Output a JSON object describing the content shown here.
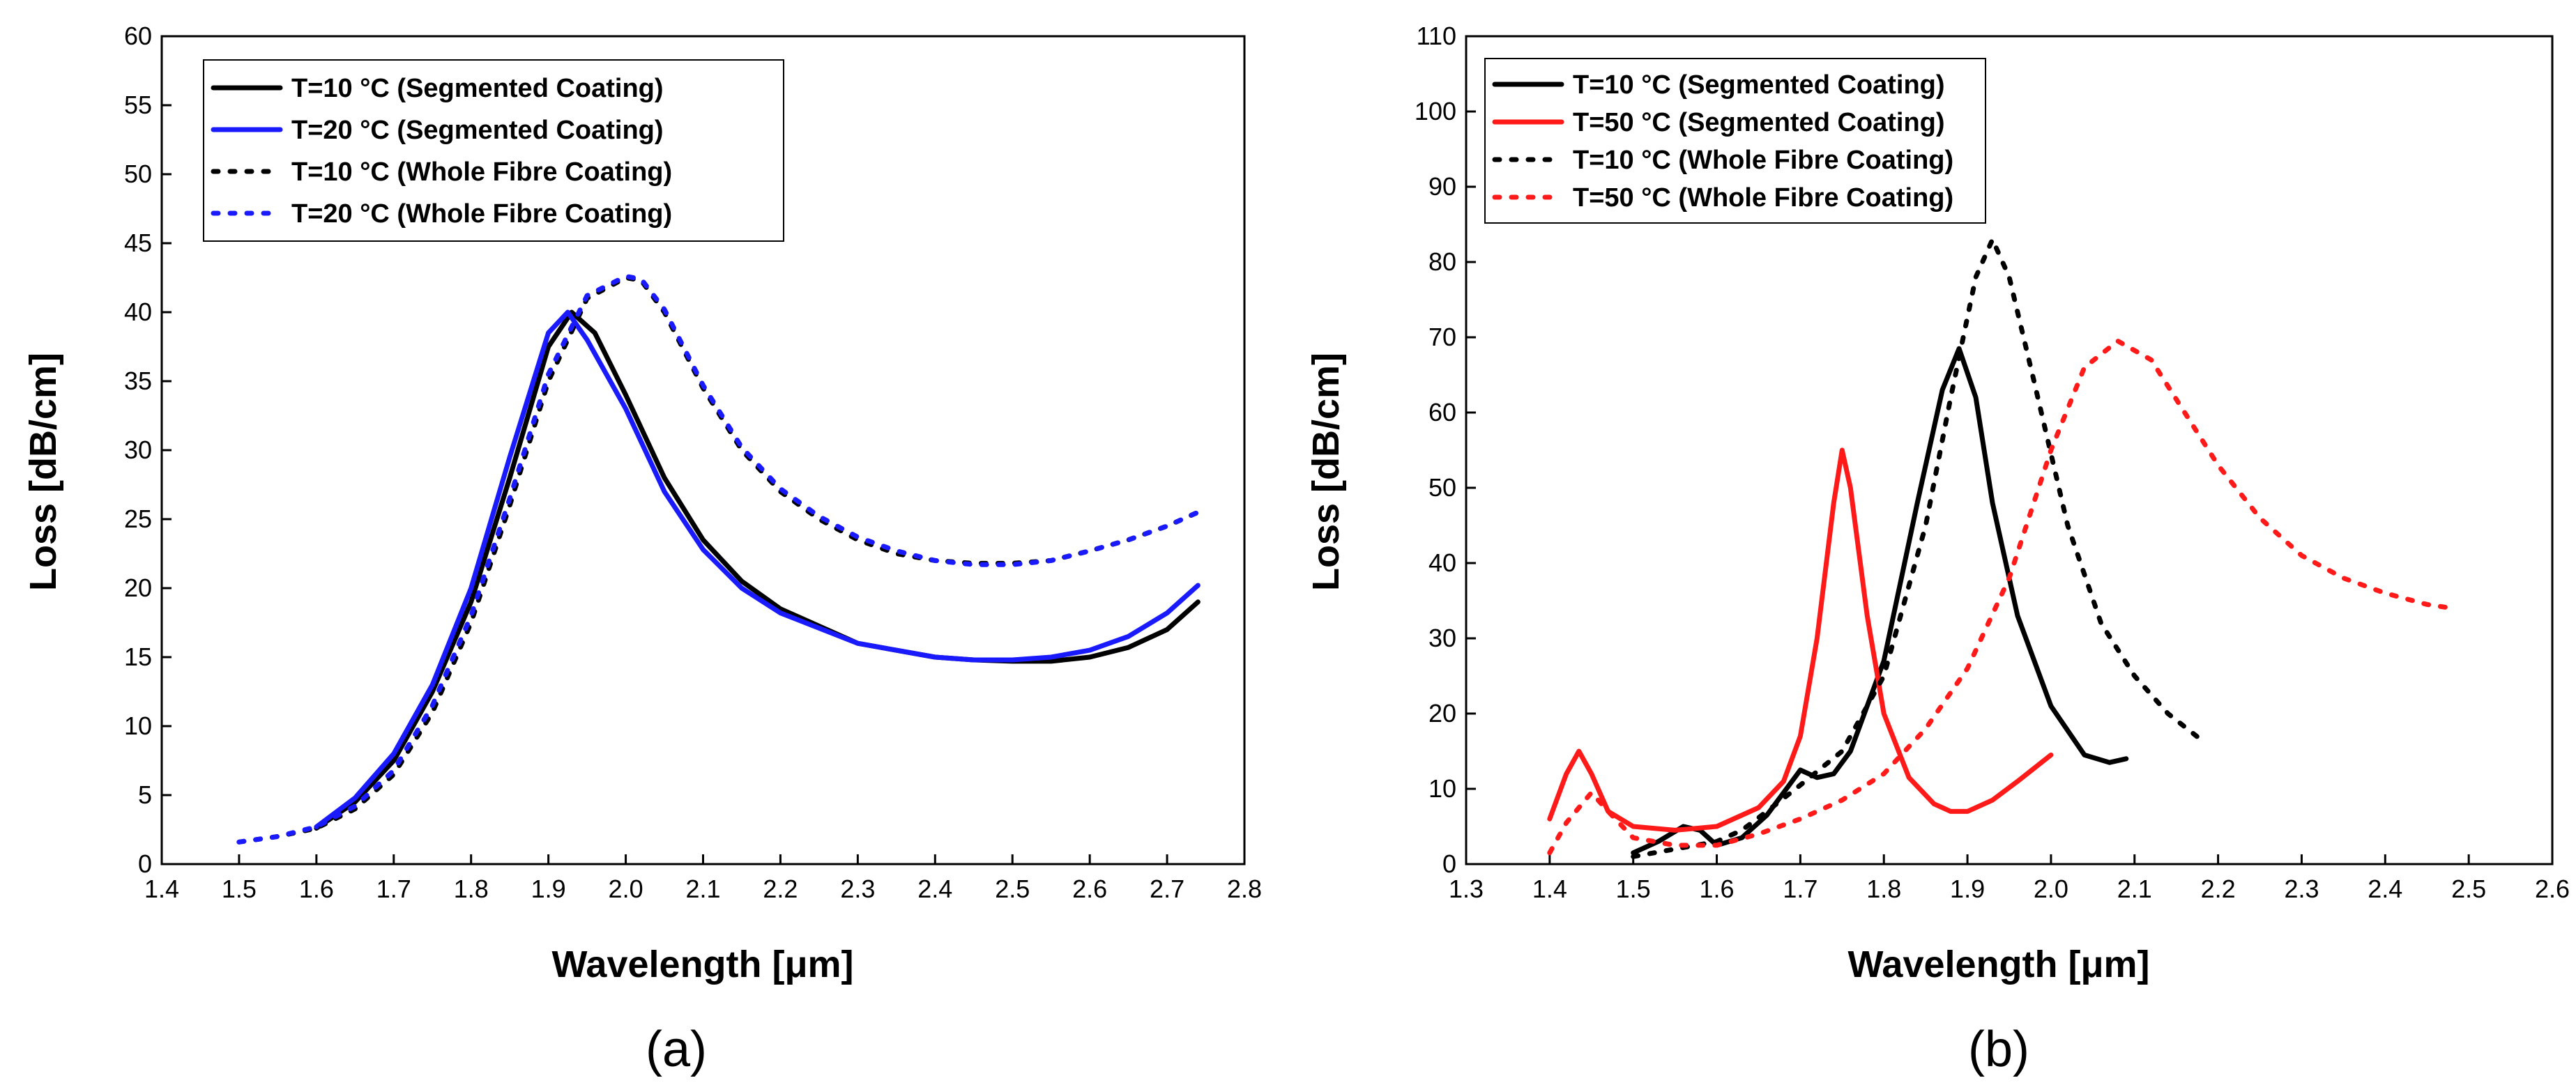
{
  "chart_data": [
    {
      "type": "line",
      "panel_label": "(a)",
      "xlabel": "Wavelength [μm]",
      "ylabel": "Loss [dB/cm]",
      "xlim": [
        1.4,
        2.8
      ],
      "ylim": [
        0,
        60
      ],
      "xticks": [
        "1.4",
        "1.5",
        "1.6",
        "1.7",
        "1.8",
        "1.9",
        "2.0",
        "2.1",
        "2.2",
        "2.3",
        "2.4",
        "2.5",
        "2.6",
        "2.7",
        "2.8"
      ],
      "yticks": [
        "0",
        "5",
        "10",
        "15",
        "20",
        "25",
        "30",
        "35",
        "40",
        "45",
        "50",
        "55",
        "60"
      ],
      "grid": false,
      "legend_position": "top-left",
      "series": [
        {
          "name": "T=10 °C (Segmented Coating)",
          "color": "#000000",
          "dash": "solid",
          "x": [
            1.6,
            1.65,
            1.7,
            1.75,
            1.8,
            1.85,
            1.9,
            1.93,
            1.96,
            2.0,
            2.05,
            2.1,
            2.15,
            2.2,
            2.3,
            2.4,
            2.45,
            2.5,
            2.55,
            2.6,
            2.65,
            2.7,
            2.74
          ],
          "y": [
            2.6,
            4.5,
            7.5,
            12.5,
            19.0,
            28.0,
            37.5,
            40.0,
            38.5,
            34.0,
            28.0,
            23.5,
            20.5,
            18.5,
            16.0,
            15.0,
            14.8,
            14.7,
            14.7,
            15.0,
            15.7,
            17.0,
            19.0
          ]
        },
        {
          "name": "T=20 °C (Segmented Coating)",
          "color": "#1a1aff",
          "dash": "solid",
          "x": [
            1.6,
            1.65,
            1.7,
            1.75,
            1.8,
            1.85,
            1.9,
            1.925,
            1.95,
            2.0,
            2.05,
            2.1,
            2.15,
            2.2,
            2.3,
            2.4,
            2.45,
            2.5,
            2.55,
            2.6,
            2.65,
            2.7,
            2.74
          ],
          "y": [
            2.7,
            4.8,
            8.0,
            13.0,
            20.0,
            29.5,
            38.5,
            40.0,
            38.0,
            33.0,
            27.0,
            22.8,
            20.0,
            18.2,
            16.0,
            15.0,
            14.8,
            14.8,
            15.0,
            15.5,
            16.5,
            18.2,
            20.2
          ]
        },
        {
          "name": "T=10 °C (Whole Fibre Coating)",
          "color": "#000000",
          "dash": "dotted",
          "x": [
            1.5,
            1.55,
            1.6,
            1.65,
            1.7,
            1.75,
            1.8,
            1.85,
            1.9,
            1.95,
            2.0,
            2.02,
            2.05,
            2.1,
            2.15,
            2.2,
            2.25,
            2.3,
            2.35,
            2.4,
            2.45,
            2.5,
            2.55,
            2.6,
            2.65,
            2.7,
            2.74
          ],
          "y": [
            1.6,
            2.0,
            2.6,
            4.0,
            6.5,
            11.0,
            17.5,
            26.0,
            35.0,
            41.0,
            42.5,
            42.3,
            40.0,
            34.5,
            30.0,
            27.0,
            25.0,
            23.5,
            22.5,
            22.0,
            21.8,
            21.8,
            22.0,
            22.7,
            23.5,
            24.5,
            25.5
          ]
        },
        {
          "name": "T=20 °C (Whole Fibre Coating)",
          "color": "#1a1aff",
          "dash": "dotted",
          "x": [
            1.5,
            1.55,
            1.6,
            1.65,
            1.7,
            1.75,
            1.8,
            1.85,
            1.9,
            1.95,
            2.0,
            2.02,
            2.05,
            2.1,
            2.15,
            2.2,
            2.25,
            2.3,
            2.35,
            2.4,
            2.45,
            2.5,
            2.55,
            2.6,
            2.65,
            2.7,
            2.74
          ],
          "y": [
            1.6,
            2.0,
            2.7,
            4.2,
            6.8,
            11.5,
            18.0,
            26.5,
            35.5,
            41.2,
            42.6,
            42.4,
            40.2,
            34.7,
            30.2,
            27.2,
            25.2,
            23.7,
            22.7,
            22.0,
            21.7,
            21.7,
            22.0,
            22.7,
            23.5,
            24.5,
            25.5
          ]
        }
      ]
    },
    {
      "type": "line",
      "panel_label": "(b)",
      "xlabel": "Wavelength [μm]",
      "ylabel": "Loss [dB/cm]",
      "xlim": [
        1.3,
        2.6
      ],
      "ylim": [
        0,
        110
      ],
      "xticks": [
        "1.3",
        "1.4",
        "1.5",
        "1.6",
        "1.7",
        "1.8",
        "1.9",
        "2.0",
        "2.1",
        "2.2",
        "2.3",
        "2.4",
        "2.5",
        "2.6"
      ],
      "yticks": [
        "0",
        "10",
        "20",
        "30",
        "40",
        "50",
        "60",
        "70",
        "80",
        "90",
        "100",
        "110"
      ],
      "grid": false,
      "legend_position": "top-left",
      "series": [
        {
          "name": "T=10 °C (Segmented Coating)",
          "color": "#000000",
          "dash": "solid",
          "x": [
            1.5,
            1.53,
            1.56,
            1.58,
            1.6,
            1.63,
            1.66,
            1.68,
            1.7,
            1.72,
            1.74,
            1.76,
            1.8,
            1.84,
            1.87,
            1.89,
            1.91,
            1.93,
            1.96,
            2.0,
            2.04,
            2.07,
            2.09
          ],
          "y": [
            1.5,
            3.0,
            5.0,
            4.5,
            2.5,
            3.5,
            6.5,
            9.5,
            12.5,
            11.5,
            12.0,
            15.0,
            27.0,
            48.0,
            63.0,
            68.5,
            62.0,
            48.0,
            33.0,
            21.0,
            14.5,
            13.5,
            14.0
          ]
        },
        {
          "name": "T=50 °C (Segmented Coating)",
          "color": "#ff1a1a",
          "dash": "solid",
          "x": [
            1.4,
            1.42,
            1.435,
            1.45,
            1.47,
            1.5,
            1.55,
            1.6,
            1.65,
            1.68,
            1.7,
            1.72,
            1.74,
            1.75,
            1.76,
            1.78,
            1.8,
            1.83,
            1.86,
            1.88,
            1.9,
            1.93,
            1.96,
            2.0
          ],
          "y": [
            6.0,
            12.0,
            15.0,
            12.0,
            7.0,
            5.0,
            4.5,
            5.0,
            7.5,
            11.0,
            17.0,
            30.0,
            48.0,
            55.0,
            50.0,
            33.0,
            20.0,
            11.5,
            8.0,
            7.0,
            7.0,
            8.5,
            11.0,
            14.5
          ]
        },
        {
          "name": "T=10 °C (Whole Fibre Coating)",
          "color": "#000000",
          "dash": "dotted",
          "x": [
            1.5,
            1.55,
            1.6,
            1.63,
            1.66,
            1.7,
            1.75,
            1.8,
            1.85,
            1.88,
            1.91,
            1.93,
            1.95,
            1.98,
            2.02,
            2.06,
            2.1,
            2.14,
            2.18
          ],
          "y": [
            1.0,
            2.0,
            3.0,
            4.5,
            7.0,
            10.5,
            15.0,
            25.0,
            45.0,
            62.0,
            78.0,
            83.0,
            78.0,
            64.0,
            45.0,
            32.0,
            25.0,
            20.0,
            16.5
          ]
        },
        {
          "name": "T=50 °C (Whole Fibre Coating)",
          "color": "#ff1a1a",
          "dash": "dotted",
          "x": [
            1.4,
            1.42,
            1.45,
            1.47,
            1.5,
            1.55,
            1.6,
            1.65,
            1.7,
            1.75,
            1.8,
            1.85,
            1.9,
            1.95,
            2.0,
            2.04,
            2.08,
            2.12,
            2.16,
            2.2,
            2.25,
            2.3,
            2.35,
            2.4,
            2.45,
            2.48
          ],
          "y": [
            1.5,
            5.5,
            9.5,
            7.0,
            3.5,
            2.5,
            2.5,
            4.0,
            6.0,
            8.5,
            12.0,
            18.0,
            26.0,
            38.0,
            55.0,
            66.0,
            69.5,
            67.0,
            60.0,
            53.0,
            46.0,
            41.0,
            38.0,
            36.0,
            34.5,
            34.0
          ]
        }
      ]
    }
  ]
}
